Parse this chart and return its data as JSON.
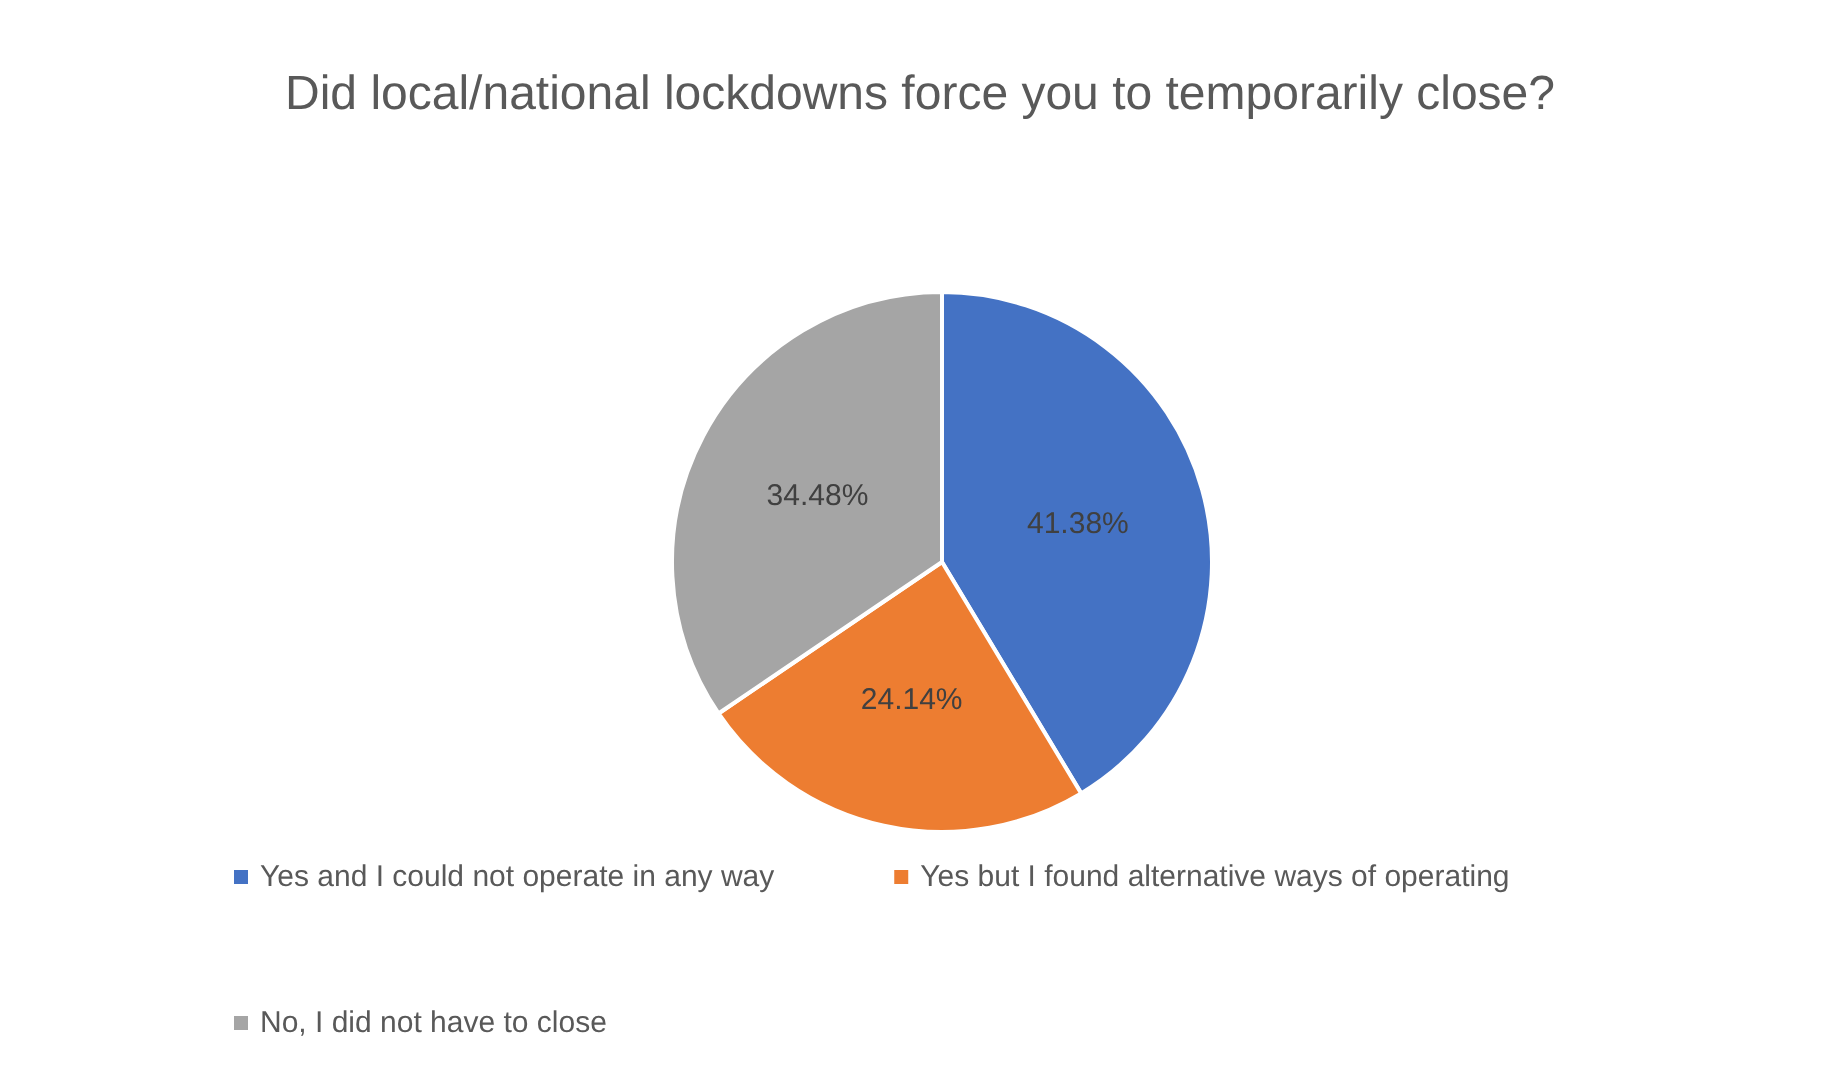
{
  "chart_data": {
    "type": "pie",
    "title": "Did local/national lockdowns force you to temporarily close?",
    "categories": [
      "Yes and I could not operate in any way",
      "Yes but I found alternative ways of operating",
      "No, I did not have to close"
    ],
    "values": [
      41.38,
      24.14,
      34.48
    ],
    "colors": [
      "#4472c4",
      "#ed7d31",
      "#a5a5a5"
    ],
    "value_labels": [
      "41.38%",
      "24.14%",
      "34.48%"
    ],
    "legend": "bottom"
  }
}
